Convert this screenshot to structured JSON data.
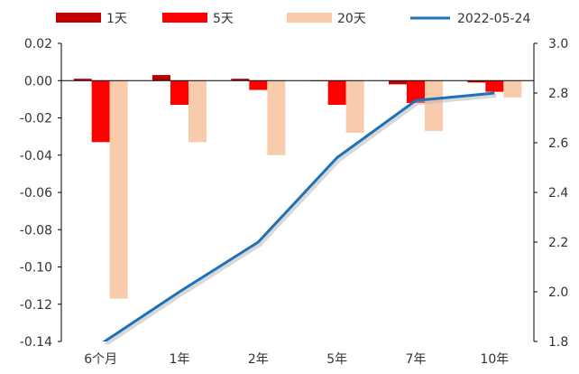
{
  "chart_data": {
    "type": "bar",
    "categories": [
      "6个月",
      "1年",
      "2年",
      "5年",
      "7年",
      "10年"
    ],
    "series": [
      {
        "name": "1天",
        "kind": "bar",
        "axis": "left",
        "color": "#C00000",
        "values": [
          0.001,
          0.003,
          0.001,
          0.0,
          -0.002,
          -0.001
        ]
      },
      {
        "name": "5天",
        "kind": "bar",
        "axis": "left",
        "color": "#FF0000",
        "values": [
          -0.033,
          -0.013,
          -0.005,
          -0.013,
          -0.012,
          -0.006
        ]
      },
      {
        "name": "20天",
        "kind": "bar",
        "axis": "left",
        "color": "#F8CBAD",
        "values": [
          -0.117,
          -0.033,
          -0.04,
          -0.028,
          -0.027,
          -0.009
        ]
      },
      {
        "name": "2022-05-24",
        "kind": "line",
        "axis": "right",
        "color": "#1F70B4",
        "values": [
          1.79,
          2.0,
          2.2,
          2.54,
          2.77,
          2.8
        ]
      }
    ],
    "y_left": {
      "range": [
        -0.14,
        0.02
      ],
      "ticks": [
        "0.02",
        "0.00",
        "-0.02",
        "-0.04",
        "-0.06",
        "-0.08",
        "-0.10",
        "-0.12",
        "-0.14"
      ]
    },
    "y_right": {
      "range": [
        1.8,
        3.0
      ],
      "ticks": [
        "3.0",
        "2.8",
        "2.6",
        "2.4",
        "2.2",
        "2.0",
        "1.8"
      ]
    },
    "grid": false,
    "legend": "top"
  }
}
